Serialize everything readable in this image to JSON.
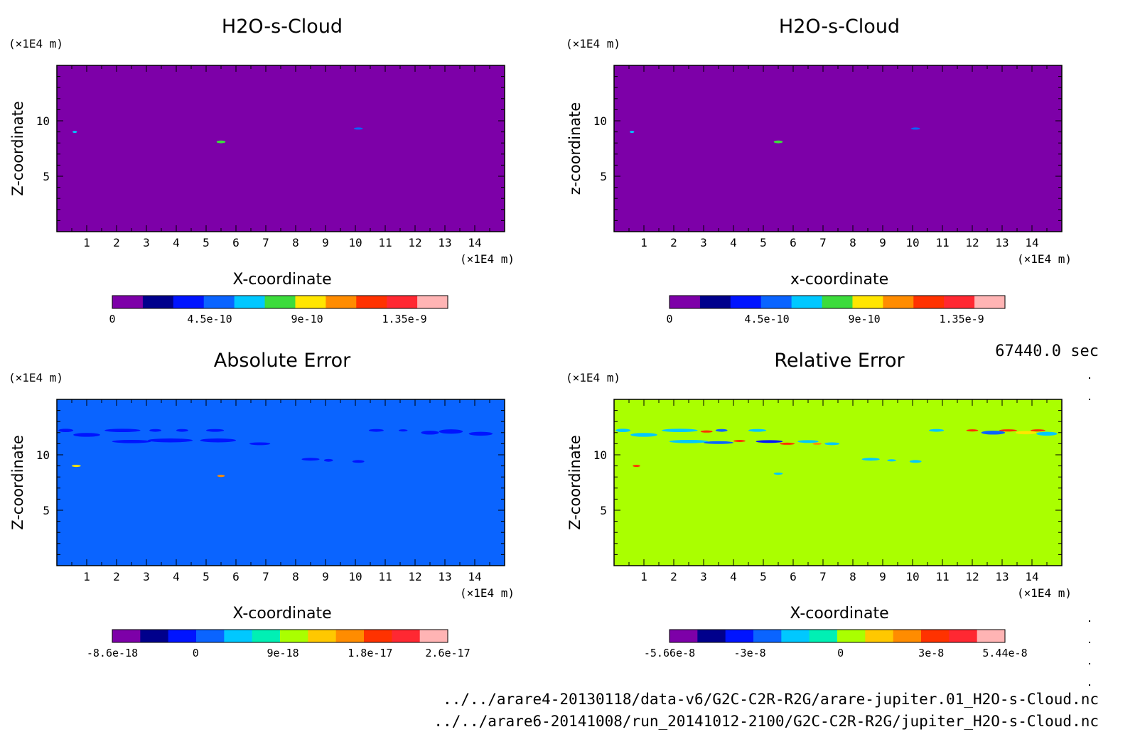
{
  "time_label": "67440.0 sec",
  "files": [
    "../../arare4-20130118/data-v6/G2C-C2R-R2G/arare-jupiter.01_H2O-s-Cloud.nc",
    "../../arare6-20141008/run_20141012-2100/G2C-C2R-R2G/jupiter_H2O-s-Cloud.nc"
  ],
  "chart_data": [
    {
      "type": "heatmap",
      "title": "H2O-s-Cloud",
      "xlabel": "X-coordinate",
      "ylabel": "Z-coordinate",
      "x_unit": "(×1E4 m)",
      "y_unit": "(×1E4 m)",
      "xlim": [
        0,
        15
      ],
      "ylim": [
        0,
        15
      ],
      "x_ticks": [
        1,
        2,
        3,
        4,
        5,
        6,
        7,
        8,
        9,
        10,
        11,
        12,
        13,
        14
      ],
      "y_ticks": [
        5,
        10
      ],
      "background_color": "#7d00a8",
      "colorbar": {
        "colors": [
          "#7d00a8",
          "#00008c",
          "#0014ff",
          "#0a64ff",
          "#00c8ff",
          "#3cdc3c",
          "#ffe600",
          "#ff8c00",
          "#ff3200",
          "#ff2832",
          "#ffb4b4"
        ],
        "tick_values": [
          0,
          4.5e-10,
          9e-10,
          1.35e-09
        ],
        "tick_labels": [
          "0",
          "4.5e-10",
          "9e-10",
          "1.35e-9"
        ],
        "range": [
          0,
          1.55e-09
        ]
      },
      "features": [
        {
          "x": 0.6,
          "z": 9.0,
          "w": 0.15,
          "h": 0.12,
          "color": "#00c8ff"
        },
        {
          "x": 5.5,
          "z": 8.1,
          "w": 0.3,
          "h": 0.25,
          "color": "#3cdc3c"
        },
        {
          "x": 10.1,
          "z": 9.3,
          "w": 0.3,
          "h": 0.12,
          "color": "#0a64ff"
        }
      ]
    },
    {
      "type": "heatmap",
      "title": "H2O-s-Cloud",
      "xlabel": "x-coordinate",
      "ylabel": "z-coordinate",
      "x_unit": "(×1E4 m)",
      "y_unit": "(×1E4 m)",
      "xlim": [
        0,
        15
      ],
      "ylim": [
        0,
        15
      ],
      "x_ticks": [
        1,
        2,
        3,
        4,
        5,
        6,
        7,
        8,
        9,
        10,
        11,
        12,
        13,
        14
      ],
      "y_ticks": [
        5,
        10
      ],
      "background_color": "#7d00a8",
      "colorbar": {
        "colors": [
          "#7d00a8",
          "#00008c",
          "#0014ff",
          "#0a64ff",
          "#00c8ff",
          "#3cdc3c",
          "#ffe600",
          "#ff8c00",
          "#ff3200",
          "#ff2832",
          "#ffb4b4"
        ],
        "tick_values": [
          0,
          4.5e-10,
          9e-10,
          1.35e-09
        ],
        "tick_labels": [
          "0",
          "4.5e-10",
          "9e-10",
          "1.35e-9"
        ],
        "range": [
          0,
          1.55e-09
        ]
      },
      "features": [
        {
          "x": 0.6,
          "z": 9.0,
          "w": 0.15,
          "h": 0.12,
          "color": "#00c8ff"
        },
        {
          "x": 5.5,
          "z": 8.1,
          "w": 0.3,
          "h": 0.25,
          "color": "#3cdc3c"
        },
        {
          "x": 10.1,
          "z": 9.3,
          "w": 0.3,
          "h": 0.12,
          "color": "#0a64ff"
        }
      ]
    },
    {
      "type": "heatmap",
      "title": "Absolute Error",
      "xlabel": "X-coordinate",
      "ylabel": "Z-coordinate",
      "x_unit": "(×1E4 m)",
      "y_unit": "(×1E4 m)",
      "xlim": [
        0,
        15
      ],
      "ylim": [
        0,
        15
      ],
      "x_ticks": [
        1,
        2,
        3,
        4,
        5,
        6,
        7,
        8,
        9,
        10,
        11,
        12,
        13,
        14
      ],
      "y_ticks": [
        5,
        10
      ],
      "background_color": "#0a64ff",
      "colorbar": {
        "colors": [
          "#7d00a8",
          "#00008c",
          "#0014ff",
          "#0a64ff",
          "#00c8ff",
          "#00f0b4",
          "#aaff00",
          "#ffc800",
          "#ff8c00",
          "#ff3200",
          "#ff2832",
          "#ffb4b4"
        ],
        "tick_values": [
          -8.6e-18,
          0,
          9e-18,
          1.8e-17,
          2.6e-17
        ],
        "tick_labels": [
          "-8.6e-18",
          "0",
          "9e-18",
          "1.8e-17",
          "2.6e-17"
        ],
        "range": [
          -8.6e-18,
          2.6e-17
        ]
      },
      "features": [
        {
          "x": 0.3,
          "z": 12.2,
          "w": 0.5,
          "h": 0.3,
          "color": "#0014ff"
        },
        {
          "x": 1.0,
          "z": 11.8,
          "w": 0.9,
          "h": 0.35,
          "color": "#0014ff"
        },
        {
          "x": 2.2,
          "z": 12.2,
          "w": 1.2,
          "h": 0.3,
          "color": "#0014ff"
        },
        {
          "x": 3.3,
          "z": 12.2,
          "w": 0.4,
          "h": 0.25,
          "color": "#0014ff"
        },
        {
          "x": 4.2,
          "z": 12.2,
          "w": 0.4,
          "h": 0.25,
          "color": "#0014ff"
        },
        {
          "x": 5.3,
          "z": 12.2,
          "w": 0.6,
          "h": 0.25,
          "color": "#0014ff"
        },
        {
          "x": 2.5,
          "z": 11.2,
          "w": 1.3,
          "h": 0.3,
          "color": "#0014ff"
        },
        {
          "x": 3.8,
          "z": 11.3,
          "w": 1.5,
          "h": 0.35,
          "color": "#0014ff"
        },
        {
          "x": 5.4,
          "z": 11.3,
          "w": 1.2,
          "h": 0.35,
          "color": "#0014ff"
        },
        {
          "x": 6.8,
          "z": 11.0,
          "w": 0.7,
          "h": 0.25,
          "color": "#0014ff"
        },
        {
          "x": 8.5,
          "z": 9.6,
          "w": 0.6,
          "h": 0.25,
          "color": "#0014ff"
        },
        {
          "x": 9.1,
          "z": 9.5,
          "w": 0.3,
          "h": 0.25,
          "color": "#0014ff"
        },
        {
          "x": 10.1,
          "z": 9.4,
          "w": 0.4,
          "h": 0.25,
          "color": "#0014ff"
        },
        {
          "x": 10.7,
          "z": 12.2,
          "w": 0.5,
          "h": 0.25,
          "color": "#0014ff"
        },
        {
          "x": 11.6,
          "z": 12.2,
          "w": 0.3,
          "h": 0.2,
          "color": "#0014ff"
        },
        {
          "x": 12.5,
          "z": 12.0,
          "w": 0.6,
          "h": 0.35,
          "color": "#0014ff"
        },
        {
          "x": 13.2,
          "z": 12.1,
          "w": 0.8,
          "h": 0.4,
          "color": "#0014ff"
        },
        {
          "x": 14.2,
          "z": 11.9,
          "w": 0.8,
          "h": 0.35,
          "color": "#0014ff"
        },
        {
          "x": 0.65,
          "z": 9.0,
          "w": 0.3,
          "h": 0.18,
          "color": "#ffe600"
        },
        {
          "x": 5.5,
          "z": 8.1,
          "w": 0.25,
          "h": 0.2,
          "color": "#ff8c00"
        }
      ]
    },
    {
      "type": "heatmap",
      "title": "Relative Error",
      "xlabel": "X-coordinate",
      "ylabel": "Z-coordinate",
      "x_unit": "(×1E4 m)",
      "y_unit": "(×1E4 m)",
      "xlim": [
        0,
        15
      ],
      "ylim": [
        0,
        15
      ],
      "x_ticks": [
        1,
        2,
        3,
        4,
        5,
        6,
        7,
        8,
        9,
        10,
        11,
        12,
        13,
        14
      ],
      "y_ticks": [
        5,
        10
      ],
      "background_color": "#aaff00",
      "colorbar": {
        "colors": [
          "#7d00a8",
          "#00008c",
          "#0014ff",
          "#0a64ff",
          "#00c8ff",
          "#00f0b4",
          "#aaff00",
          "#ffc800",
          "#ff8c00",
          "#ff3200",
          "#ff2832",
          "#ffb4b4"
        ],
        "tick_values": [
          -5.66e-08,
          -3e-08,
          0,
          3e-08,
          5.44e-08
        ],
        "tick_labels": [
          "-5.66e-8",
          "-3e-8",
          "0",
          "3e-8",
          "5.44e-8"
        ],
        "range": [
          -5.66e-08,
          5.44e-08
        ]
      },
      "features": [
        {
          "x": 0.3,
          "z": 12.2,
          "w": 0.5,
          "h": 0.3,
          "color": "#00c8ff"
        },
        {
          "x": 1.0,
          "z": 11.8,
          "w": 0.9,
          "h": 0.35,
          "color": "#00c8ff"
        },
        {
          "x": 2.2,
          "z": 12.2,
          "w": 1.2,
          "h": 0.3,
          "color": "#00c8ff"
        },
        {
          "x": 3.1,
          "z": 12.1,
          "w": 0.4,
          "h": 0.2,
          "color": "#ff3200"
        },
        {
          "x": 3.6,
          "z": 12.2,
          "w": 0.4,
          "h": 0.25,
          "color": "#0a64ff"
        },
        {
          "x": 4.8,
          "z": 12.2,
          "w": 0.6,
          "h": 0.25,
          "color": "#00c8ff"
        },
        {
          "x": 2.5,
          "z": 11.2,
          "w": 1.3,
          "h": 0.3,
          "color": "#00c8ff"
        },
        {
          "x": 3.5,
          "z": 11.1,
          "w": 1.0,
          "h": 0.25,
          "color": "#0a64ff"
        },
        {
          "x": 4.2,
          "z": 11.25,
          "w": 0.4,
          "h": 0.15,
          "color": "#ff3200"
        },
        {
          "x": 5.2,
          "z": 11.2,
          "w": 0.9,
          "h": 0.25,
          "color": "#0014ff"
        },
        {
          "x": 5.8,
          "z": 11.0,
          "w": 0.5,
          "h": 0.15,
          "color": "#ff3200"
        },
        {
          "x": 6.5,
          "z": 11.2,
          "w": 0.7,
          "h": 0.25,
          "color": "#00c8ff"
        },
        {
          "x": 6.8,
          "z": 11.0,
          "w": 0.3,
          "h": 0.15,
          "color": "#ff8c00"
        },
        {
          "x": 7.3,
          "z": 11.0,
          "w": 0.5,
          "h": 0.25,
          "color": "#00c8ff"
        },
        {
          "x": 0.75,
          "z": 9.0,
          "w": 0.25,
          "h": 0.12,
          "color": "#ff3200"
        },
        {
          "x": 5.5,
          "z": 8.3,
          "w": 0.3,
          "h": 0.2,
          "color": "#00c8ff"
        },
        {
          "x": 8.6,
          "z": 9.6,
          "w": 0.6,
          "h": 0.25,
          "color": "#00c8ff"
        },
        {
          "x": 9.3,
          "z": 9.5,
          "w": 0.3,
          "h": 0.2,
          "color": "#00c8ff"
        },
        {
          "x": 10.1,
          "z": 9.4,
          "w": 0.4,
          "h": 0.25,
          "color": "#00c8ff"
        },
        {
          "x": 10.8,
          "z": 12.2,
          "w": 0.5,
          "h": 0.25,
          "color": "#00c8ff"
        },
        {
          "x": 12.0,
          "z": 12.2,
          "w": 0.4,
          "h": 0.2,
          "color": "#ff3200"
        },
        {
          "x": 12.7,
          "z": 12.0,
          "w": 0.8,
          "h": 0.35,
          "color": "#0a64ff"
        },
        {
          "x": 13.2,
          "z": 12.2,
          "w": 0.6,
          "h": 0.2,
          "color": "#ff3200"
        },
        {
          "x": 13.8,
          "z": 12.0,
          "w": 0.7,
          "h": 0.3,
          "color": "#ffe600"
        },
        {
          "x": 14.2,
          "z": 12.2,
          "w": 0.5,
          "h": 0.2,
          "color": "#ff3200"
        },
        {
          "x": 14.5,
          "z": 11.9,
          "w": 0.7,
          "h": 0.35,
          "color": "#00c8ff"
        }
      ]
    }
  ]
}
